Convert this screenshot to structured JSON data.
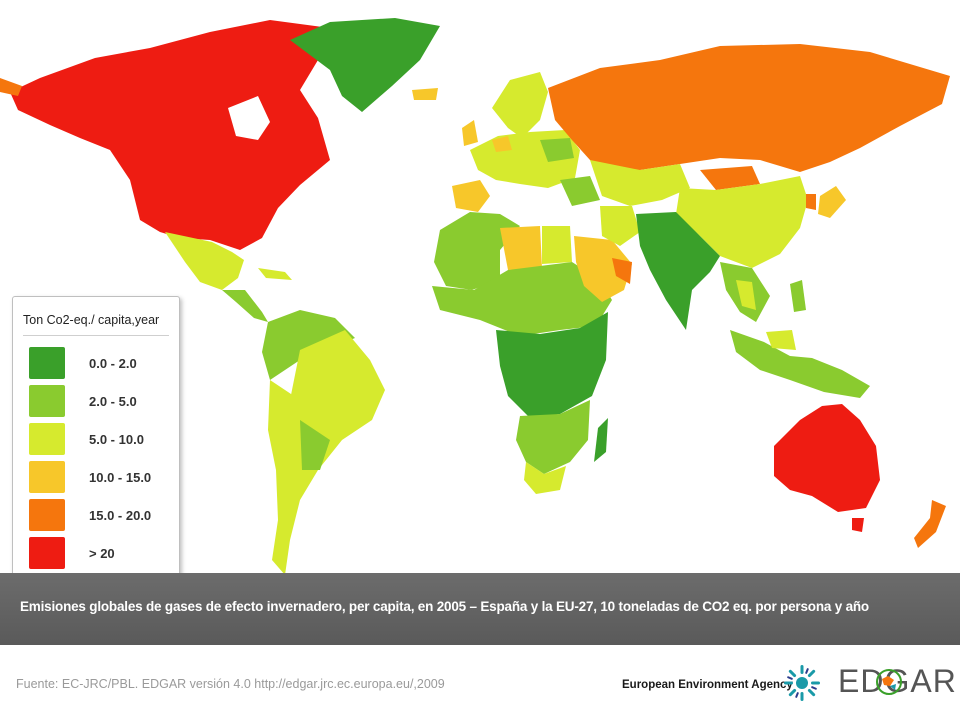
{
  "legend": {
    "title": "Ton Co2-eq./ capita,year",
    "items": [
      {
        "label": "0.0 - 2.0",
        "color": "#3aa02a"
      },
      {
        "label": "2.0 - 5.0",
        "color": "#8acb2f"
      },
      {
        "label": "5.0 - 10.0",
        "color": "#d6ea2e"
      },
      {
        "label": "10.0 - 15.0",
        "color": "#f7c72a"
      },
      {
        "label": "15.0 - 20.0",
        "color": "#f5760d"
      },
      {
        "label": "> 20",
        "color": "#ee1c12"
      }
    ]
  },
  "caption": "Emisiones globales de gases de efecto invernadero, per capita, en 2005 – España y la EU-27, 10 toneladas de CO2 eq. por persona y año",
  "footer": {
    "source": "Fuente: EC-JRC/PBL. EDGAR versión 4.0 http://edgar.jrc.ec.europa.eu/,2009",
    "agency": "European Environment Agency",
    "logo_edgar": "EDGAR"
  },
  "regions": [
    {
      "name": "north-america",
      "class": "> 20"
    },
    {
      "name": "greenland",
      "class": "0.0 - 2.0"
    },
    {
      "name": "mexico",
      "class": "5.0 - 10.0"
    },
    {
      "name": "central-america",
      "class": "2.0 - 5.0"
    },
    {
      "name": "south-america-north",
      "class": "2.0 - 5.0"
    },
    {
      "name": "brazil",
      "class": "5.0 - 10.0"
    },
    {
      "name": "south-america-south",
      "class": "5.0 - 10.0"
    },
    {
      "name": "iceland",
      "class": "10.0 - 15.0"
    },
    {
      "name": "scandinavia",
      "class": "5.0 - 10.0"
    },
    {
      "name": "western-europe",
      "class": "5.0 - 10.0"
    },
    {
      "name": "iberia",
      "class": "10.0 - 15.0"
    },
    {
      "name": "russia",
      "class": "15.0 - 20.0"
    },
    {
      "name": "north-africa",
      "class": "2.0 - 5.0"
    },
    {
      "name": "libya",
      "class": "10.0 - 15.0"
    },
    {
      "name": "egypt",
      "class": "5.0 - 10.0"
    },
    {
      "name": "arabia",
      "class": "10.0 - 15.0"
    },
    {
      "name": "gulf",
      "class": "15.0 - 20.0"
    },
    {
      "name": "sahel",
      "class": "2.0 - 5.0"
    },
    {
      "name": "central-africa",
      "class": "0.0 - 2.0"
    },
    {
      "name": "southern-africa",
      "class": "2.0 - 5.0"
    },
    {
      "name": "south-africa",
      "class": "5.0 - 10.0"
    },
    {
      "name": "madagascar",
      "class": "0.0 - 2.0"
    },
    {
      "name": "india",
      "class": "0.0 - 2.0"
    },
    {
      "name": "central-asia",
      "class": "5.0 - 10.0"
    },
    {
      "name": "mongolia",
      "class": "15.0 - 20.0"
    },
    {
      "name": "china",
      "class": "5.0 - 10.0"
    },
    {
      "name": "southeast-asia",
      "class": "2.0 - 5.0"
    },
    {
      "name": "japan",
      "class": "10.0 - 15.0"
    },
    {
      "name": "indonesia",
      "class": "2.0 - 5.0"
    },
    {
      "name": "australia",
      "class": "> 20"
    },
    {
      "name": "new-zealand",
      "class": "15.0 - 20.0"
    }
  ]
}
